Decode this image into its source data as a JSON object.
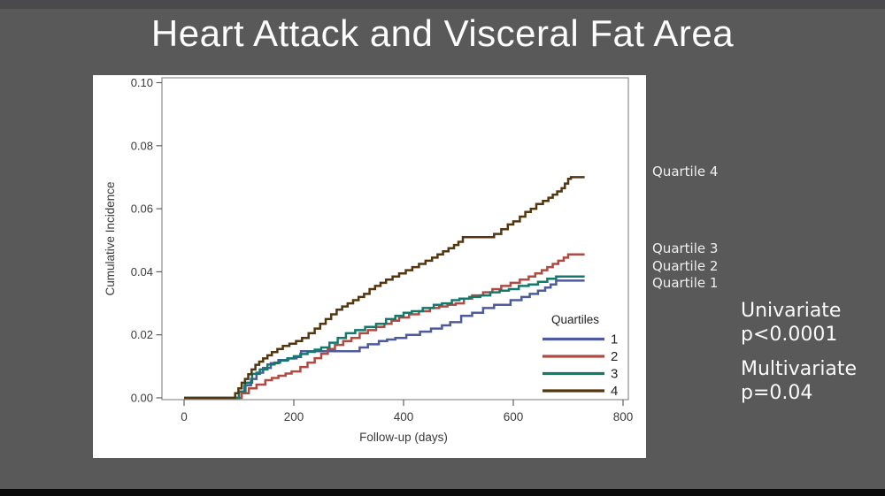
{
  "slide": {
    "title": "Heart Attack and Visceral Fat Area",
    "background_color": "#59595a",
    "top_bar_color": "#4a4a4c",
    "bottom_bar_color": "#0b0b0b",
    "title_color": "#fdfdfd"
  },
  "annotations": {
    "curve_labels": [
      "Quartile 4",
      "Quartile 3",
      "Quartile 2",
      "Quartile 1"
    ],
    "stats": [
      {
        "name": "Univariate",
        "value": "p<0.0001"
      },
      {
        "name": "Multivariate",
        "value": "p=0.04"
      }
    ]
  },
  "chart_data": {
    "type": "line",
    "subtype": "step",
    "title": "",
    "xlabel": "Follow-up (days)",
    "ylabel": "Cumulative Incidence",
    "xlim": [
      0,
      800
    ],
    "ylim": [
      0,
      0.1
    ],
    "xticks": [
      0,
      200,
      400,
      600,
      800
    ],
    "yticks": [
      0.0,
      0.02,
      0.04,
      0.06,
      0.08,
      0.1
    ],
    "grid": false,
    "legend_title": "Quartiles",
    "legend_position": "inside-bottom-right",
    "frame_color": "#8e8e8e",
    "tick_text_color": "#3b3b3b",
    "legend_text_color": "#222222",
    "series": [
      {
        "name": "1",
        "color": "#4d5b9c",
        "points": [
          [
            0,
            0
          ],
          [
            90,
            0
          ],
          [
            100,
            0.002
          ],
          [
            110,
            0.004
          ],
          [
            122,
            0.006
          ],
          [
            132,
            0.008
          ],
          [
            144,
            0.0095
          ],
          [
            158,
            0.011
          ],
          [
            172,
            0.012
          ],
          [
            190,
            0.0125
          ],
          [
            205,
            0.013
          ],
          [
            213,
            0.0148
          ],
          [
            310,
            0.0148
          ],
          [
            320,
            0.016
          ],
          [
            335,
            0.017
          ],
          [
            355,
            0.018
          ],
          [
            370,
            0.0185
          ],
          [
            385,
            0.019
          ],
          [
            405,
            0.02
          ],
          [
            430,
            0.021
          ],
          [
            450,
            0.022
          ],
          [
            470,
            0.023
          ],
          [
            485,
            0.024
          ],
          [
            505,
            0.026
          ],
          [
            525,
            0.027
          ],
          [
            545,
            0.0285
          ],
          [
            565,
            0.0295
          ],
          [
            595,
            0.031
          ],
          [
            615,
            0.032
          ],
          [
            630,
            0.033
          ],
          [
            645,
            0.034
          ],
          [
            658,
            0.035
          ],
          [
            668,
            0.036
          ],
          [
            678,
            0.0372
          ],
          [
            730,
            0.0372
          ]
        ]
      },
      {
        "name": "2",
        "color": "#b04a42",
        "points": [
          [
            0,
            0
          ],
          [
            95,
            0
          ],
          [
            105,
            0.0015
          ],
          [
            118,
            0.003
          ],
          [
            132,
            0.0042
          ],
          [
            148,
            0.0056
          ],
          [
            160,
            0.0063
          ],
          [
            172,
            0.007
          ],
          [
            185,
            0.0077
          ],
          [
            196,
            0.0084
          ],
          [
            212,
            0.0098
          ],
          [
            225,
            0.0112
          ],
          [
            238,
            0.0126
          ],
          [
            250,
            0.014
          ],
          [
            262,
            0.0155
          ],
          [
            275,
            0.0168
          ],
          [
            290,
            0.018
          ],
          [
            305,
            0.019
          ],
          [
            320,
            0.0205
          ],
          [
            335,
            0.0215
          ],
          [
            350,
            0.0225
          ],
          [
            365,
            0.0235
          ],
          [
            378,
            0.0245
          ],
          [
            392,
            0.0255
          ],
          [
            410,
            0.0265
          ],
          [
            428,
            0.0275
          ],
          [
            448,
            0.0285
          ],
          [
            465,
            0.029
          ],
          [
            480,
            0.0295
          ],
          [
            495,
            0.03
          ],
          [
            510,
            0.0315
          ],
          [
            525,
            0.0325
          ],
          [
            545,
            0.0335
          ],
          [
            562,
            0.0345
          ],
          [
            578,
            0.0355
          ],
          [
            595,
            0.0365
          ],
          [
            612,
            0.0375
          ],
          [
            628,
            0.0385
          ],
          [
            640,
            0.0395
          ],
          [
            652,
            0.0405
          ],
          [
            662,
            0.0415
          ],
          [
            672,
            0.0425
          ],
          [
            682,
            0.0435
          ],
          [
            692,
            0.0445
          ],
          [
            700,
            0.0455
          ],
          [
            730,
            0.0455
          ]
        ]
      },
      {
        "name": "3",
        "color": "#117a6b",
        "points": [
          [
            0,
            0
          ],
          [
            92,
            0
          ],
          [
            100,
            0.002
          ],
          [
            112,
            0.0048
          ],
          [
            124,
            0.0076
          ],
          [
            138,
            0.009
          ],
          [
            152,
            0.0106
          ],
          [
            165,
            0.0112
          ],
          [
            175,
            0.0118
          ],
          [
            188,
            0.0125
          ],
          [
            200,
            0.0132
          ],
          [
            212,
            0.0139
          ],
          [
            225,
            0.0146
          ],
          [
            238,
            0.0153
          ],
          [
            250,
            0.016
          ],
          [
            265,
            0.0175
          ],
          [
            280,
            0.019
          ],
          [
            295,
            0.0205
          ],
          [
            312,
            0.0215
          ],
          [
            330,
            0.0225
          ],
          [
            350,
            0.0235
          ],
          [
            368,
            0.025
          ],
          [
            385,
            0.026
          ],
          [
            400,
            0.027
          ],
          [
            415,
            0.0275
          ],
          [
            435,
            0.0285
          ],
          [
            455,
            0.0295
          ],
          [
            470,
            0.03
          ],
          [
            488,
            0.031
          ],
          [
            502,
            0.0315
          ],
          [
            520,
            0.032
          ],
          [
            540,
            0.0325
          ],
          [
            558,
            0.0335
          ],
          [
            575,
            0.034
          ],
          [
            592,
            0.0345
          ],
          [
            610,
            0.0355
          ],
          [
            628,
            0.036
          ],
          [
            645,
            0.0368
          ],
          [
            662,
            0.0378
          ],
          [
            678,
            0.0385
          ],
          [
            730,
            0.0385
          ]
        ]
      },
      {
        "name": "4",
        "color": "#53360e",
        "points": [
          [
            0,
            0
          ],
          [
            87,
            0
          ],
          [
            93,
            0.0015
          ],
          [
            99,
            0.003
          ],
          [
            105,
            0.0048
          ],
          [
            111,
            0.006
          ],
          [
            117,
            0.0075
          ],
          [
            123,
            0.009
          ],
          [
            130,
            0.0105
          ],
          [
            137,
            0.0115
          ],
          [
            144,
            0.0125
          ],
          [
            152,
            0.0135
          ],
          [
            160,
            0.0145
          ],
          [
            170,
            0.0155
          ],
          [
            180,
            0.0165
          ],
          [
            192,
            0.0172
          ],
          [
            204,
            0.018
          ],
          [
            215,
            0.019
          ],
          [
            227,
            0.0205
          ],
          [
            238,
            0.022
          ],
          [
            248,
            0.0235
          ],
          [
            258,
            0.025
          ],
          [
            268,
            0.0265
          ],
          [
            278,
            0.028
          ],
          [
            288,
            0.029
          ],
          [
            298,
            0.03
          ],
          [
            308,
            0.031
          ],
          [
            318,
            0.032
          ],
          [
            328,
            0.033
          ],
          [
            338,
            0.0345
          ],
          [
            348,
            0.0355
          ],
          [
            358,
            0.0365
          ],
          [
            368,
            0.0375
          ],
          [
            380,
            0.0385
          ],
          [
            392,
            0.0395
          ],
          [
            404,
            0.0405
          ],
          [
            416,
            0.0415
          ],
          [
            428,
            0.0425
          ],
          [
            440,
            0.0435
          ],
          [
            452,
            0.0445
          ],
          [
            462,
            0.0455
          ],
          [
            472,
            0.0465
          ],
          [
            482,
            0.0475
          ],
          [
            492,
            0.0485
          ],
          [
            500,
            0.0495
          ],
          [
            508,
            0.051
          ],
          [
            556,
            0.051
          ],
          [
            565,
            0.052
          ],
          [
            578,
            0.0535
          ],
          [
            590,
            0.055
          ],
          [
            600,
            0.056
          ],
          [
            612,
            0.0575
          ],
          [
            622,
            0.059
          ],
          [
            632,
            0.06
          ],
          [
            642,
            0.0615
          ],
          [
            654,
            0.0625
          ],
          [
            664,
            0.0635
          ],
          [
            672,
            0.0645
          ],
          [
            680,
            0.0655
          ],
          [
            688,
            0.0665
          ],
          [
            694,
            0.068
          ],
          [
            700,
            0.0695
          ],
          [
            705,
            0.07
          ],
          [
            730,
            0.07
          ]
        ]
      }
    ]
  }
}
